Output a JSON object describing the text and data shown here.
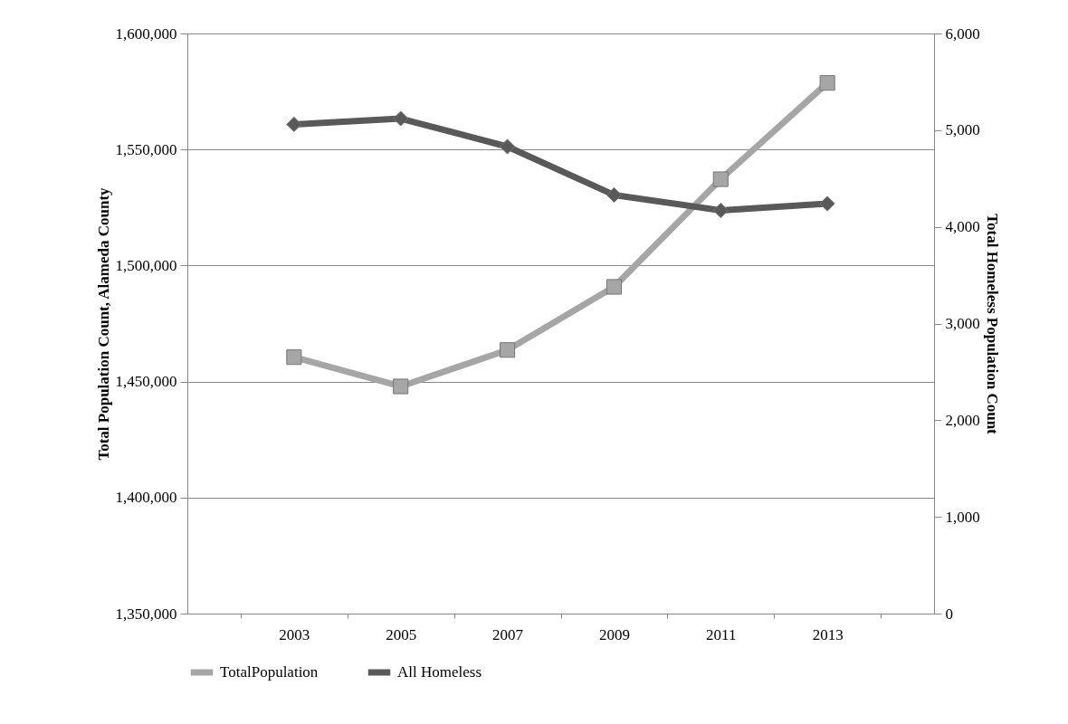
{
  "chart_data": {
    "type": "line",
    "categories": [
      "2003",
      "2005",
      "2007",
      "2009",
      "2011",
      "2013"
    ],
    "ylabel": "Total Population Count,  Alameda County",
    "y2label": "Total Homeless Population Count",
    "ylim": [
      1350000,
      1600000
    ],
    "yticks": [
      {
        "value": 1350000,
        "label": "1,350,000"
      },
      {
        "value": 1400000,
        "label": "1,400,000"
      },
      {
        "value": 1450000,
        "label": "1,450,000"
      },
      {
        "value": 1500000,
        "label": "1,500,000"
      },
      {
        "value": 1550000,
        "label": "1,550,000"
      },
      {
        "value": 1600000,
        "label": "1,600,000"
      }
    ],
    "y2lim": [
      0,
      6000
    ],
    "y2ticks": [
      0,
      {
        "value": 1000,
        "label": "1,000"
      },
      {
        "value": 2000,
        "label": "2,000"
      },
      {
        "value": 3000,
        "label": "3,000"
      },
      {
        "value": 4000,
        "label": "4,000"
      },
      {
        "value": 5000,
        "label": "5,000"
      },
      {
        "value": 6000,
        "label": "6,000"
      }
    ],
    "series": [
      {
        "name": "TotalPopulation",
        "color": "#a6a6a6",
        "marker": "square",
        "values": [
          1460500,
          1447900,
          1463600,
          1490800,
          1537200,
          1578700
        ]
      },
      {
        "name": "All Homeless",
        "color": "#595959",
        "marker": "diamond",
        "axis": "y2",
        "values": [
          5060,
          5120,
          4830,
          4330,
          4170,
          4240
        ]
      }
    ],
    "grid": "y",
    "legend": "bottom"
  }
}
